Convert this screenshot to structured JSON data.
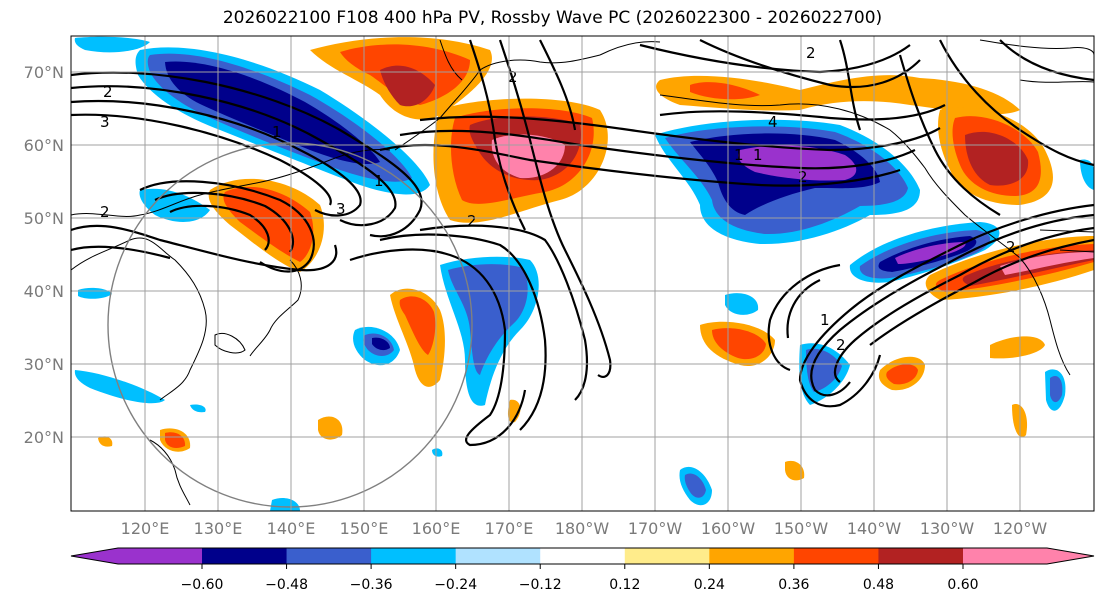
{
  "title": "2026022100 F108 400 hPa PV, Rossby Wave PC (2026022300 - 2026022700)",
  "lat_labels": [
    "70°N",
    "60°N",
    "50°N",
    "40°N",
    "30°N",
    "20°N"
  ],
  "lon_labels": [
    "120°E",
    "130°E",
    "140°E",
    "150°E",
    "160°E",
    "170°E",
    "180°W",
    "170°W",
    "160°W",
    "150°W",
    "140°W",
    "130°W",
    "120°W"
  ],
  "colorbar": {
    "ticks": [
      "−0.60",
      "−0.48",
      "−0.36",
      "−0.24",
      "−0.12",
      "0.12",
      "0.24",
      "0.36",
      "0.48",
      "0.60"
    ],
    "colors": [
      "#9a32cd",
      "#00008b",
      "#3a5fcd",
      "#00bfff",
      "#b0e2ff",
      "#ffffff",
      "#ffec8b",
      "#ffa500",
      "#ff4500",
      "#b22222",
      "#ff82ab"
    ]
  },
  "contour_labels": [
    "2",
    "3",
    "2",
    "1",
    "1",
    "3",
    "2",
    "2",
    "4",
    "2",
    "1",
    "2",
    "1",
    "2",
    "1",
    "2"
  ]
}
